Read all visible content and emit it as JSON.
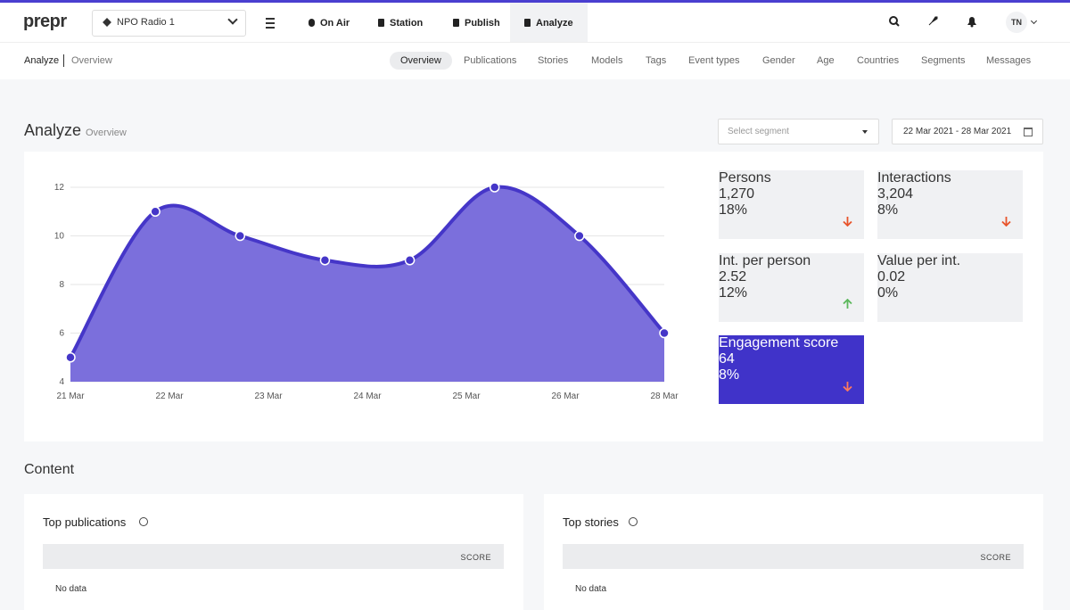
{
  "nav": {
    "logo": "prepr",
    "station_select": "NPO Radio 1",
    "items": [
      "On Air",
      "Station",
      "Publish",
      "Analyze"
    ],
    "active": 3,
    "avatar": "TN"
  },
  "subnav": {
    "breadcrumb": [
      "Analyze",
      "Overview"
    ],
    "tabs": [
      "Overview",
      "Publications",
      "Stories",
      "Models",
      "Tags",
      "Event types",
      "Gender",
      "Age",
      "Countries",
      "Segments",
      "Messages"
    ],
    "active": 0
  },
  "header": {
    "title": "Analyze",
    "subtitle": "Overview",
    "segment_placeholder": "Select segment",
    "date_range": "22 Mar 2021 - 28 Mar 2021"
  },
  "chart_data": {
    "type": "area",
    "values": [
      5,
      11,
      10,
      9,
      9,
      12,
      10,
      6
    ],
    "xtick_labels": [
      "21 Mar",
      "22 Mar",
      "23 Mar",
      "24 Mar",
      "25 Mar",
      "26 Mar",
      "28 Mar"
    ],
    "ylim": [
      4,
      12
    ],
    "yticks": [
      4,
      6,
      8,
      10,
      12
    ],
    "grid": true,
    "color": "#4536c8",
    "fill": "#7b6fdc"
  },
  "stats": [
    {
      "label": "Persons",
      "value": "1,270",
      "change": "18%",
      "direction": "down"
    },
    {
      "label": "Interactions",
      "value": "3,204",
      "change": "8%",
      "direction": "down"
    },
    {
      "label": "Int. per person",
      "value": "2.52",
      "change": "12%",
      "direction": "up"
    },
    {
      "label": "Value per int.",
      "value": "0.02",
      "change": "0%",
      "direction": null
    },
    {
      "label": "Engagement score",
      "value": "64",
      "change": "8%",
      "direction": "down",
      "highlight": true
    }
  ],
  "content": {
    "title": "Content",
    "panels": [
      {
        "title": "Top publications",
        "column": "SCORE",
        "empty": "No data"
      },
      {
        "title": "Top stories",
        "column": "SCORE",
        "empty": "No data"
      }
    ]
  }
}
